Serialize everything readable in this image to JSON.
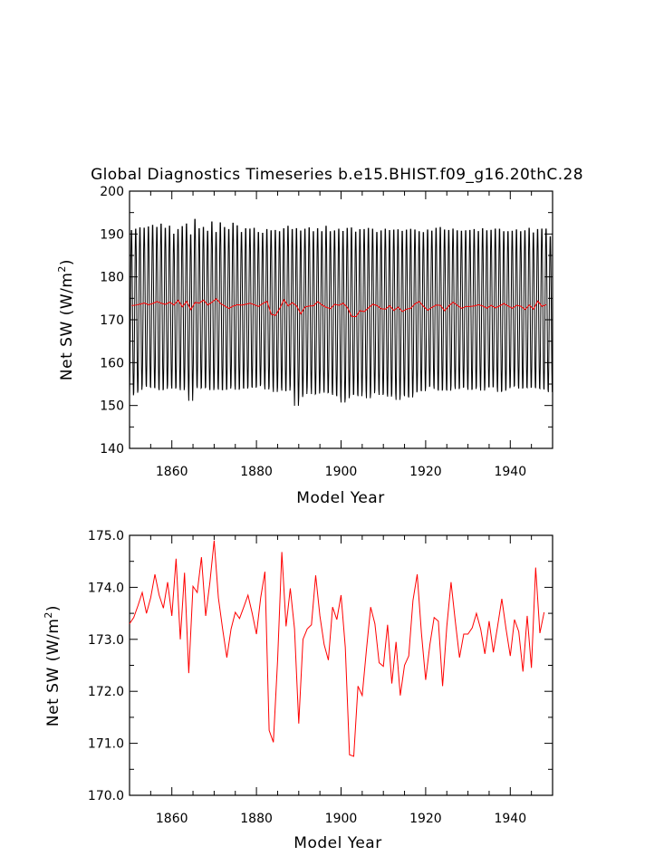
{
  "chart_data": [
    {
      "type": "line",
      "title": "Global Diagnostics Timeseries b.e15.BHIST.f09_g16.20thC.28",
      "xlabel": "Model Year",
      "ylabel": "Net SW (W/m",
      "ylabel_sup": "2",
      "ylabel_tail": ")",
      "xlim": [
        1850,
        1950
      ],
      "ylim": [
        140,
        200
      ],
      "xticks": [
        1860,
        1880,
        1900,
        1920,
        1940
      ],
      "yticks": [
        140,
        150,
        160,
        170,
        180,
        190,
        200
      ],
      "ytick_labels": [
        "140",
        "150",
        "160",
        "170",
        "180",
        "190",
        "200"
      ],
      "grid": false,
      "series": [
        {
          "color": "#000000",
          "description": "monthly values oscillating with annual cycle",
          "annual_max": [
            191.5,
            191.8,
            192.1,
            192.0,
            192.3,
            192.7,
            192.2,
            193.0,
            192.0,
            192.5,
            190.6,
            191.7,
            192.4,
            193.0,
            190.5,
            194.1,
            191.9,
            192.2,
            191.3,
            193.5,
            191.0,
            193.3,
            192.2,
            191.7,
            193.2,
            192.6,
            191.0,
            191.9,
            191.8,
            192.0,
            191.0,
            190.8,
            191.7,
            191.4,
            191.5,
            191.2,
            191.9,
            192.5,
            191.7,
            192.0,
            191.4,
            191.8,
            192.1,
            191.2,
            191.9,
            191.2,
            192.5,
            191.2,
            191.4,
            191.8,
            191.3,
            192.0,
            192.1,
            191.1,
            191.7,
            191.7,
            192.0,
            191.8,
            191.0,
            191.4,
            191.8,
            191.5,
            191.6,
            191.7,
            191.3,
            191.6,
            191.8,
            191.6,
            191.2,
            191.0,
            191.6,
            191.3,
            192.0,
            192.2,
            191.6,
            191.5,
            191.8,
            191.4,
            191.3,
            191.4,
            191.5,
            191.7,
            191.2,
            191.9,
            191.4,
            191.5,
            191.8,
            191.8,
            191.2,
            191.2,
            191.3,
            191.6,
            191.2,
            191.4,
            192.0,
            190.9,
            191.7,
            191.8,
            191.8,
            190.0
          ],
          "annual_min": [
            151.7,
            152.3,
            153.0,
            154.2,
            153.7,
            153.6,
            153.4,
            152.9,
            153.2,
            154.1,
            153.3,
            153.7,
            152.9,
            153.7,
            150.4,
            154.0,
            153.4,
            153.5,
            153.6,
            152.9,
            153.6,
            153.0,
            153.0,
            153.3,
            154.0,
            153.0,
            153.5,
            153.3,
            153.8,
            153.5,
            153.9,
            154.4,
            153.1,
            153.8,
            152.5,
            153.6,
            152.8,
            152.8,
            154.0,
            149.2,
            151.3,
            152.0,
            153.7,
            152.0,
            152.1,
            153.1,
            152.3,
            152.4,
            151.8,
            151.5,
            150.0,
            151.0,
            151.8,
            152.0,
            151.5,
            152.8,
            151.0,
            152.2,
            153.1,
            151.8,
            152.2,
            151.4,
            152.1,
            150.6,
            152.0,
            151.5,
            151.2,
            152.4,
            152.9,
            152.7,
            153.7,
            154.1,
            153.2,
            152.8,
            153.2,
            152.8,
            154.0,
            153.2,
            153.5,
            153.7,
            153.0,
            153.2,
            153.9,
            152.8,
            153.7,
            153.7,
            153.7,
            152.5,
            152.8,
            153.4,
            153.9,
            154.0,
            153.3,
            153.6,
            153.5,
            153.7,
            153.4,
            153.3,
            153.1,
            152.5
          ]
        },
        {
          "color": "#ff0000",
          "description": "annual mean",
          "values_ref": "panel2"
        }
      ]
    },
    {
      "type": "line",
      "xlabel": "Model Year",
      "ylabel": "Net SW (W/m",
      "ylabel_sup": "2",
      "ylabel_tail": ")",
      "xlim": [
        1850,
        1950
      ],
      "ylim": [
        170,
        175
      ],
      "xticks": [
        1860,
        1880,
        1900,
        1920,
        1940
      ],
      "yticks": [
        170,
        171,
        172,
        173,
        174,
        175
      ],
      "ytick_labels": [
        "170.0",
        "171.0",
        "172.0",
        "173.0",
        "174.0",
        "175.0"
      ],
      "grid": false,
      "series": [
        {
          "color": "#ff0000",
          "x_start": 1850,
          "values": [
            173.3,
            173.42,
            173.65,
            173.9,
            173.5,
            173.8,
            174.25,
            173.85,
            173.6,
            174.1,
            173.45,
            174.55,
            173.0,
            174.28,
            172.35,
            174.02,
            173.9,
            174.58,
            173.45,
            174.1,
            174.9,
            173.8,
            173.2,
            172.65,
            173.2,
            173.52,
            173.4,
            173.62,
            173.85,
            173.5,
            173.1,
            173.8,
            174.3,
            171.25,
            171.02,
            172.6,
            174.68,
            173.25,
            173.98,
            173.2,
            171.38,
            173.0,
            173.2,
            173.28,
            174.23,
            173.45,
            172.9,
            172.6,
            173.62,
            173.38,
            173.85,
            172.85,
            170.78,
            170.75,
            172.1,
            171.92,
            172.8,
            173.62,
            173.3,
            172.55,
            172.48,
            173.28,
            172.15,
            172.95,
            171.92,
            172.5,
            172.68,
            173.75,
            174.25,
            173.12,
            172.22,
            172.9,
            173.42,
            173.35,
            172.1,
            173.25,
            174.1,
            173.35,
            172.65,
            173.1,
            173.1,
            173.22,
            173.5,
            173.2,
            172.72,
            173.35,
            172.75,
            173.25,
            173.78,
            173.2,
            172.68,
            173.38,
            173.15,
            172.38,
            173.45,
            172.45,
            174.38,
            173.12,
            173.52
          ]
        }
      ]
    }
  ]
}
